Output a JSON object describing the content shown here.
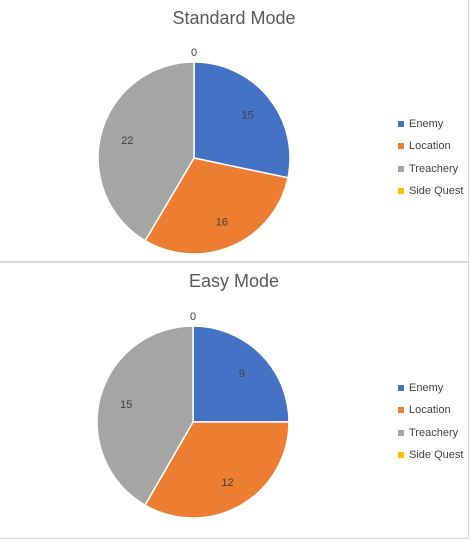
{
  "chart_data": [
    {
      "type": "pie",
      "title": "Standard Mode",
      "categories": [
        "Enemy",
        "Location",
        "Treachery",
        "Side Quest"
      ],
      "values": [
        15,
        16,
        22,
        0
      ],
      "colors": [
        "#4472c4",
        "#ed7d31",
        "#a5a5a5",
        "#ffc000"
      ],
      "legend": "right"
    },
    {
      "type": "pie",
      "title": "Easy Mode",
      "categories": [
        "Enemy",
        "Location",
        "Treachery",
        "Side Quest"
      ],
      "values": [
        9,
        12,
        15,
        0
      ],
      "colors": [
        "#4472c4",
        "#ed7d31",
        "#a5a5a5",
        "#ffc000"
      ],
      "legend": "right"
    }
  ]
}
